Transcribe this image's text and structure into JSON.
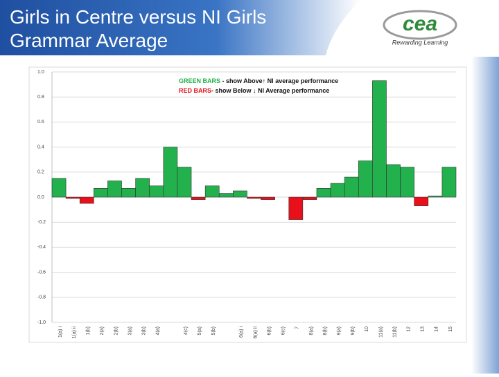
{
  "header": {
    "title": "Girls in Centre versus NI Girls Grammar Average",
    "logo": "cea",
    "tagline": "Rewarding Learning"
  },
  "chart_data": {
    "type": "bar",
    "categories": [
      "1(a) i",
      "1(a) ii",
      "1(b)",
      "2(a)",
      "2(b)",
      "3(a)",
      "3(b)",
      "4(a)",
      null,
      "4(c)",
      "5(a)",
      "5(b)",
      null,
      "6(a) i",
      "6(a) ii",
      "6(b)",
      "6(c)",
      "7",
      "8(a)",
      "8(b)",
      "9(a)",
      "9(b)",
      "10",
      "11(a)",
      "11(b)",
      "12",
      "13",
      "14",
      "15"
    ],
    "values": [
      0.15,
      -0.01,
      -0.05,
      0.07,
      0.13,
      0.07,
      0.15,
      0.09,
      0.4,
      0.24,
      -0.02,
      0.09,
      0.03,
      0.05,
      -0.01,
      -0.02,
      0,
      -0.18,
      -0.02,
      0.07,
      0.11,
      0.16,
      0.29,
      0.93,
      0.26,
      0.24,
      -0.07,
      0.01,
      0.24
    ],
    "positive_color": "#22b14c",
    "negative_color": "#e8101a",
    "ylim": [
      -1,
      1
    ],
    "yticks": [
      {
        "value": 1,
        "label": "1.0"
      },
      {
        "value": 0.8,
        "label": "0.8"
      },
      {
        "value": 0.6,
        "label": "0.6"
      },
      {
        "value": 0.4,
        "label": "0.4"
      },
      {
        "value": 0.2,
        "label": "0.2"
      },
      {
        "value": 0,
        "label": "0.0"
      },
      {
        "value": -0.2,
        "label": "-0.2"
      },
      {
        "value": -0.4,
        "label": "-0.4"
      },
      {
        "value": -0.6,
        "label": "-0.6"
      },
      {
        "value": -0.8,
        "label": "-0.8"
      },
      {
        "value": -1,
        "label": "-1.0"
      }
    ],
    "grid": true,
    "legend": [
      {
        "key": "GREEN BARS",
        "text": " - show Above↑ NI average performance"
      },
      {
        "key": "RED BARS",
        "text": "- show Below ↓ NI Average performance"
      }
    ]
  }
}
